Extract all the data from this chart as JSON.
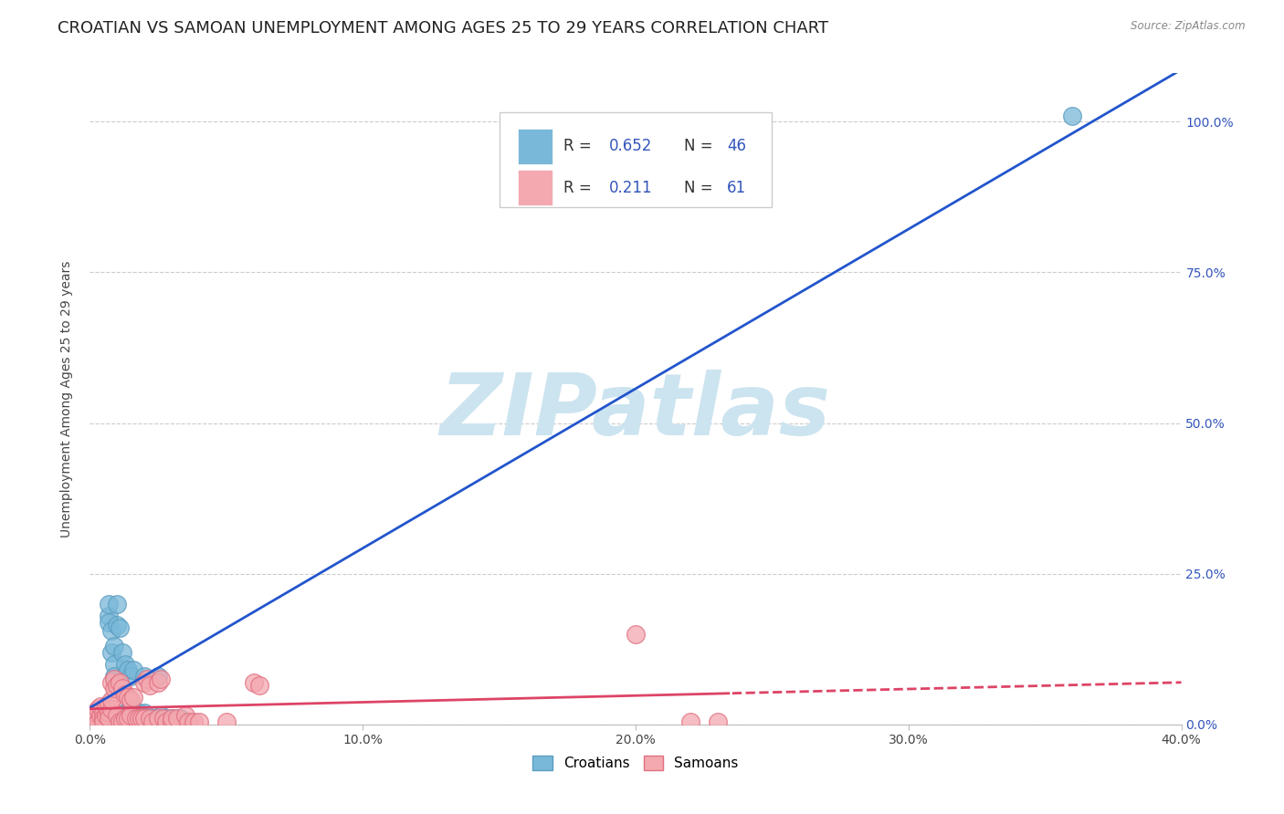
{
  "title": "CROATIAN VS SAMOAN UNEMPLOYMENT AMONG AGES 25 TO 29 YEARS CORRELATION CHART",
  "source": "Source: ZipAtlas.com",
  "ylabel": "Unemployment Among Ages 25 to 29 years",
  "xlim": [
    0.0,
    0.4
  ],
  "ylim": [
    0.0,
    1.08
  ],
  "xticks": [
    0.0,
    0.1,
    0.2,
    0.3,
    0.4
  ],
  "xticklabels": [
    "0.0%",
    "10.0%",
    "20.0%",
    "30.0%",
    "40.0%"
  ],
  "yticks": [
    0.0,
    0.25,
    0.5,
    0.75,
    1.0
  ],
  "yticklabels": [
    "0.0%",
    "25.0%",
    "50.0%",
    "75.0%",
    "100.0%"
  ],
  "croatian_color": "#7ab8d9",
  "croatian_edge_color": "#5a9dbf",
  "samoan_color": "#f4a8b0",
  "samoan_edge_color": "#e07080",
  "legend_R_color": "#3355bb",
  "legend_N_color": "#3355bb",
  "watermark": "ZIPatlas",
  "watermark_color": "#cce4f0",
  "bg_color": "#ffffff",
  "grid_color": "#cccccc",
  "grid_style": "--",
  "line_blue_color": "#2255cc",
  "line_pink_color": "#dd4466",
  "croatian_scatter": [
    [
      0.001,
      0.005
    ],
    [
      0.001,
      0.01
    ],
    [
      0.002,
      0.005
    ],
    [
      0.002,
      0.015
    ],
    [
      0.003,
      0.01
    ],
    [
      0.003,
      0.005
    ],
    [
      0.004,
      0.008
    ],
    [
      0.004,
      0.012
    ],
    [
      0.005,
      0.02
    ],
    [
      0.005,
      0.01
    ],
    [
      0.005,
      0.005
    ],
    [
      0.006,
      0.008
    ],
    [
      0.006,
      0.015
    ],
    [
      0.007,
      0.18
    ],
    [
      0.007,
      0.2
    ],
    [
      0.007,
      0.17
    ],
    [
      0.008,
      0.155
    ],
    [
      0.008,
      0.12
    ],
    [
      0.009,
      0.13
    ],
    [
      0.009,
      0.1
    ],
    [
      0.009,
      0.08
    ],
    [
      0.01,
      0.2
    ],
    [
      0.01,
      0.165
    ],
    [
      0.011,
      0.16
    ],
    [
      0.011,
      0.01
    ],
    [
      0.012,
      0.12
    ],
    [
      0.012,
      0.01
    ],
    [
      0.013,
      0.1
    ],
    [
      0.013,
      0.02
    ],
    [
      0.014,
      0.09
    ],
    [
      0.014,
      0.02
    ],
    [
      0.015,
      0.08
    ],
    [
      0.015,
      0.03
    ],
    [
      0.016,
      0.09
    ],
    [
      0.017,
      0.02
    ],
    [
      0.018,
      0.02
    ],
    [
      0.02,
      0.02
    ],
    [
      0.02,
      0.08
    ],
    [
      0.022,
      0.01
    ],
    [
      0.023,
      0.01
    ],
    [
      0.025,
      0.08
    ],
    [
      0.026,
      0.015
    ],
    [
      0.028,
      0.01
    ],
    [
      0.03,
      0.01
    ],
    [
      0.033,
      0.01
    ],
    [
      0.36,
      1.01
    ]
  ],
  "samoan_scatter": [
    [
      0.001,
      0.005
    ],
    [
      0.001,
      0.015
    ],
    [
      0.002,
      0.01
    ],
    [
      0.002,
      0.02
    ],
    [
      0.003,
      0.005
    ],
    [
      0.003,
      0.025
    ],
    [
      0.004,
      0.015
    ],
    [
      0.004,
      0.03
    ],
    [
      0.005,
      0.02
    ],
    [
      0.005,
      0.01
    ],
    [
      0.005,
      0.005
    ],
    [
      0.006,
      0.015
    ],
    [
      0.006,
      0.03
    ],
    [
      0.007,
      0.02
    ],
    [
      0.007,
      0.035
    ],
    [
      0.007,
      0.01
    ],
    [
      0.008,
      0.025
    ],
    [
      0.008,
      0.04
    ],
    [
      0.008,
      0.07
    ],
    [
      0.009,
      0.06
    ],
    [
      0.009,
      0.075
    ],
    [
      0.01,
      0.065
    ],
    [
      0.01,
      0.015
    ],
    [
      0.011,
      0.07
    ],
    [
      0.011,
      0.005
    ],
    [
      0.012,
      0.06
    ],
    [
      0.012,
      0.005
    ],
    [
      0.013,
      0.05
    ],
    [
      0.013,
      0.01
    ],
    [
      0.014,
      0.045
    ],
    [
      0.014,
      0.01
    ],
    [
      0.015,
      0.04
    ],
    [
      0.015,
      0.015
    ],
    [
      0.016,
      0.045
    ],
    [
      0.017,
      0.01
    ],
    [
      0.018,
      0.01
    ],
    [
      0.019,
      0.01
    ],
    [
      0.02,
      0.01
    ],
    [
      0.02,
      0.07
    ],
    [
      0.021,
      0.075
    ],
    [
      0.022,
      0.01
    ],
    [
      0.022,
      0.065
    ],
    [
      0.023,
      0.005
    ],
    [
      0.025,
      0.07
    ],
    [
      0.025,
      0.01
    ],
    [
      0.026,
      0.075
    ],
    [
      0.027,
      0.01
    ],
    [
      0.028,
      0.005
    ],
    [
      0.03,
      0.005
    ],
    [
      0.03,
      0.01
    ],
    [
      0.032,
      0.01
    ],
    [
      0.035,
      0.015
    ],
    [
      0.036,
      0.005
    ],
    [
      0.038,
      0.005
    ],
    [
      0.04,
      0.005
    ],
    [
      0.05,
      0.005
    ],
    [
      0.06,
      0.07
    ],
    [
      0.062,
      0.065
    ],
    [
      0.2,
      0.15
    ],
    [
      0.22,
      0.005
    ],
    [
      0.23,
      0.005
    ]
  ],
  "title_fontsize": 13,
  "axis_label_fontsize": 10,
  "tick_fontsize": 10
}
